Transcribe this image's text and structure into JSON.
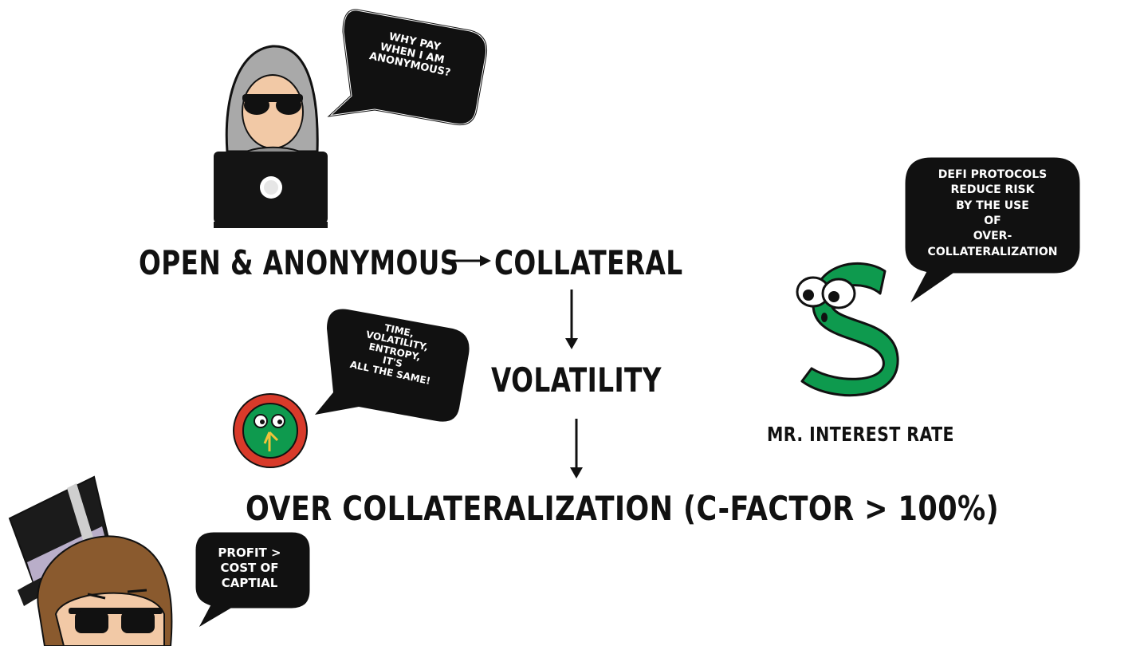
{
  "flow": {
    "open_anonymous": "OPEN & ANONYMOUS",
    "collateral": "COLLATERAL",
    "volatility": "VOLATILITY",
    "over_collateralization": "OVER COLLATERALIZATION (C-FACTOR > 100%)"
  },
  "bubbles": {
    "hacker": "WHY PAY\nWHEN I AM\nANONYMOUS?",
    "clock": "TIME,\nVOLATILITY,\nENTROPY,\nIT'S\nALL THE SAME!",
    "interest": "DEFI PROTOCOLS\nREDUCE RISK\nBY THE USE\nOF\nOVER-\nCOLLATERALIZATION",
    "banker": "PROFIT >\nCOST OF\nCAPTIAL"
  },
  "characters": {
    "interest_rate_name": "MR. INTEREST RATE"
  },
  "colors": {
    "ink": "#111111",
    "dollar_green": "#0e9a4e",
    "clock_red": "#d83a2a",
    "hood_gray": "#a9a9a9",
    "skin": "#f2c9a6",
    "hair_brown": "#8a5a2e"
  },
  "icons": [
    "hacker-laptop-icon",
    "dollar-sign-character-icon",
    "clock-character-icon",
    "top-hat-banker-icon"
  ]
}
